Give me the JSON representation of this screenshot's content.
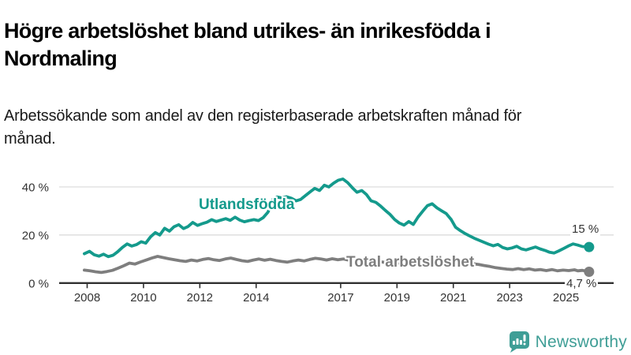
{
  "chart_data": {
    "type": "line",
    "title": "Högre arbetslöshet bland utrikes- än inrikesfödda i Nordmaling",
    "subtitle": "Arbetssökande som andel av den registerbaserade arbetskraften månad för månad.",
    "unit": "%",
    "grid": true,
    "legend_position": "inline-labels",
    "x_axis": {
      "ticks": [
        2008,
        2010,
        2012,
        2014,
        2017,
        2019,
        2021,
        2023,
        2025
      ],
      "range": [
        2007.9,
        2026.6
      ]
    },
    "y_axis": {
      "ticks": [
        {
          "value": 0,
          "label": "0 %"
        },
        {
          "value": 20,
          "label": "20 %"
        },
        {
          "value": 40,
          "label": "40 %"
        }
      ],
      "range": [
        0,
        47
      ]
    },
    "series": [
      {
        "name": "Utlandsfödda",
        "color": "#149a8c",
        "end_label": "15 %",
        "end_value": 15,
        "points": [
          [
            2007.9,
            12.2
          ],
          [
            2008.08,
            13.2
          ],
          [
            2008.25,
            11.8
          ],
          [
            2008.42,
            11.2
          ],
          [
            2008.58,
            12.0
          ],
          [
            2008.75,
            11.0
          ],
          [
            2008.92,
            11.6
          ],
          [
            2009.08,
            13.0
          ],
          [
            2009.25,
            14.8
          ],
          [
            2009.42,
            16.3
          ],
          [
            2009.58,
            15.4
          ],
          [
            2009.75,
            16.0
          ],
          [
            2009.92,
            17.2
          ],
          [
            2010.08,
            16.6
          ],
          [
            2010.25,
            19.2
          ],
          [
            2010.42,
            21.0
          ],
          [
            2010.58,
            20.0
          ],
          [
            2010.75,
            22.8
          ],
          [
            2010.92,
            21.6
          ],
          [
            2011.08,
            23.4
          ],
          [
            2011.25,
            24.3
          ],
          [
            2011.42,
            22.7
          ],
          [
            2011.58,
            23.5
          ],
          [
            2011.75,
            25.2
          ],
          [
            2011.92,
            24.0
          ],
          [
            2012.08,
            24.7
          ],
          [
            2012.25,
            25.3
          ],
          [
            2012.42,
            26.4
          ],
          [
            2012.58,
            25.6
          ],
          [
            2012.75,
            26.2
          ],
          [
            2012.92,
            26.8
          ],
          [
            2013.08,
            26.1
          ],
          [
            2013.25,
            27.4
          ],
          [
            2013.42,
            26.2
          ],
          [
            2013.58,
            25.5
          ],
          [
            2013.75,
            26.0
          ],
          [
            2013.92,
            26.4
          ],
          [
            2014.08,
            26.0
          ],
          [
            2014.25,
            27.2
          ],
          [
            2014.42,
            29.5
          ],
          [
            2014.58,
            34.6
          ],
          [
            2014.75,
            35.8
          ],
          [
            2014.92,
            35.4
          ],
          [
            2015.08,
            35.9
          ],
          [
            2015.25,
            35.3
          ],
          [
            2015.42,
            34.2
          ],
          [
            2015.58,
            34.8
          ],
          [
            2015.75,
            36.4
          ],
          [
            2015.92,
            38.0
          ],
          [
            2016.08,
            39.4
          ],
          [
            2016.25,
            38.5
          ],
          [
            2016.42,
            40.7
          ],
          [
            2016.58,
            40.0
          ],
          [
            2016.75,
            41.6
          ],
          [
            2016.92,
            42.8
          ],
          [
            2017.08,
            43.3
          ],
          [
            2017.25,
            41.8
          ],
          [
            2017.42,
            39.6
          ],
          [
            2017.58,
            37.8
          ],
          [
            2017.75,
            38.5
          ],
          [
            2017.92,
            36.8
          ],
          [
            2018.08,
            34.2
          ],
          [
            2018.25,
            33.6
          ],
          [
            2018.42,
            32.0
          ],
          [
            2018.58,
            30.3
          ],
          [
            2018.75,
            28.6
          ],
          [
            2018.92,
            26.4
          ],
          [
            2019.08,
            25.0
          ],
          [
            2019.25,
            24.1
          ],
          [
            2019.42,
            25.6
          ],
          [
            2019.58,
            24.4
          ],
          [
            2019.75,
            27.5
          ],
          [
            2019.92,
            30.0
          ],
          [
            2020.08,
            32.2
          ],
          [
            2020.25,
            33.0
          ],
          [
            2020.42,
            31.3
          ],
          [
            2020.58,
            30.1
          ],
          [
            2020.75,
            28.9
          ],
          [
            2020.92,
            26.5
          ],
          [
            2021.08,
            23.2
          ],
          [
            2021.25,
            21.8
          ],
          [
            2021.42,
            20.6
          ],
          [
            2021.58,
            19.6
          ],
          [
            2021.75,
            18.6
          ],
          [
            2021.92,
            17.8
          ],
          [
            2022.08,
            17.0
          ],
          [
            2022.25,
            16.2
          ],
          [
            2022.42,
            15.5
          ],
          [
            2022.58,
            16.1
          ],
          [
            2022.75,
            14.8
          ],
          [
            2022.92,
            14.2
          ],
          [
            2023.08,
            14.6
          ],
          [
            2023.25,
            15.3
          ],
          [
            2023.42,
            14.2
          ],
          [
            2023.58,
            13.8
          ],
          [
            2023.75,
            14.4
          ],
          [
            2023.92,
            15.0
          ],
          [
            2024.08,
            14.2
          ],
          [
            2024.25,
            13.6
          ],
          [
            2024.42,
            12.8
          ],
          [
            2024.58,
            12.5
          ],
          [
            2024.75,
            13.4
          ],
          [
            2024.92,
            14.4
          ],
          [
            2025.08,
            15.4
          ],
          [
            2025.25,
            16.3
          ],
          [
            2025.42,
            15.8
          ],
          [
            2025.58,
            15.2
          ],
          [
            2025.82,
            15.0
          ]
        ]
      },
      {
        "name": "Total arbetslöshet",
        "color": "#7e7e7e",
        "end_label": "4,7 %",
        "end_value": 4.7,
        "points": [
          [
            2007.9,
            5.4
          ],
          [
            2008.1,
            5.1
          ],
          [
            2008.3,
            4.7
          ],
          [
            2008.5,
            4.4
          ],
          [
            2008.7,
            4.8
          ],
          [
            2008.9,
            5.3
          ],
          [
            2009.1,
            6.2
          ],
          [
            2009.3,
            7.2
          ],
          [
            2009.5,
            8.3
          ],
          [
            2009.7,
            7.9
          ],
          [
            2009.9,
            8.8
          ],
          [
            2010.1,
            9.6
          ],
          [
            2010.3,
            10.4
          ],
          [
            2010.5,
            11.1
          ],
          [
            2010.7,
            10.6
          ],
          [
            2010.9,
            10.1
          ],
          [
            2011.1,
            9.7
          ],
          [
            2011.3,
            9.3
          ],
          [
            2011.5,
            9.0
          ],
          [
            2011.7,
            9.6
          ],
          [
            2011.9,
            9.2
          ],
          [
            2012.1,
            9.8
          ],
          [
            2012.3,
            10.2
          ],
          [
            2012.5,
            9.7
          ],
          [
            2012.7,
            9.4
          ],
          [
            2012.9,
            10.0
          ],
          [
            2013.1,
            10.4
          ],
          [
            2013.3,
            9.8
          ],
          [
            2013.5,
            9.3
          ],
          [
            2013.7,
            9.0
          ],
          [
            2013.9,
            9.6
          ],
          [
            2014.1,
            10.0
          ],
          [
            2014.3,
            9.5
          ],
          [
            2014.5,
            9.9
          ],
          [
            2014.7,
            9.4
          ],
          [
            2014.9,
            9.0
          ],
          [
            2015.1,
            8.7
          ],
          [
            2015.3,
            9.2
          ],
          [
            2015.5,
            9.6
          ],
          [
            2015.7,
            9.2
          ],
          [
            2015.9,
            9.8
          ],
          [
            2016.1,
            10.3
          ],
          [
            2016.3,
            10.0
          ],
          [
            2016.5,
            9.6
          ],
          [
            2016.7,
            10.1
          ],
          [
            2016.9,
            9.7
          ],
          [
            2017.1,
            10.0
          ],
          [
            2017.3,
            9.5
          ],
          [
            2017.5,
            9.1
          ],
          [
            2017.7,
            9.6
          ],
          [
            2017.9,
            9.2
          ],
          [
            2018.1,
            9.5
          ],
          [
            2018.3,
            9.0
          ],
          [
            2018.5,
            8.7
          ],
          [
            2018.7,
            8.4
          ],
          [
            2018.9,
            8.1
          ],
          [
            2019.1,
            8.4
          ],
          [
            2019.3,
            8.8
          ],
          [
            2019.5,
            9.1
          ],
          [
            2019.7,
            9.4
          ],
          [
            2019.9,
            9.8
          ],
          [
            2020.1,
            10.3
          ],
          [
            2020.3,
            10.0
          ],
          [
            2020.5,
            9.6
          ],
          [
            2020.7,
            9.3
          ],
          [
            2020.9,
            9.0
          ],
          [
            2021.1,
            9.3
          ],
          [
            2021.3,
            8.8
          ],
          [
            2021.5,
            8.4
          ],
          [
            2021.7,
            8.0
          ],
          [
            2021.9,
            7.7
          ],
          [
            2022.1,
            7.3
          ],
          [
            2022.3,
            6.9
          ],
          [
            2022.5,
            6.4
          ],
          [
            2022.7,
            6.1
          ],
          [
            2022.9,
            5.8
          ],
          [
            2023.1,
            5.6
          ],
          [
            2023.3,
            6.0
          ],
          [
            2023.5,
            5.6
          ],
          [
            2023.7,
            5.9
          ],
          [
            2023.9,
            5.4
          ],
          [
            2024.1,
            5.6
          ],
          [
            2024.3,
            5.2
          ],
          [
            2024.5,
            5.6
          ],
          [
            2024.7,
            5.1
          ],
          [
            2024.9,
            5.4
          ],
          [
            2025.1,
            5.2
          ],
          [
            2025.3,
            5.5
          ],
          [
            2025.42,
            5.1
          ],
          [
            2025.58,
            5.3
          ],
          [
            2025.82,
            4.7
          ]
        ]
      }
    ],
    "colors": {
      "axis": "#303030",
      "gridline": "#d9d9d9",
      "tick_label": "#333333"
    }
  },
  "branding": {
    "logo_text": "Newsworthy",
    "logo_color": "#3f9e96",
    "icon": "speech-bubble-bar-chart-icon"
  }
}
